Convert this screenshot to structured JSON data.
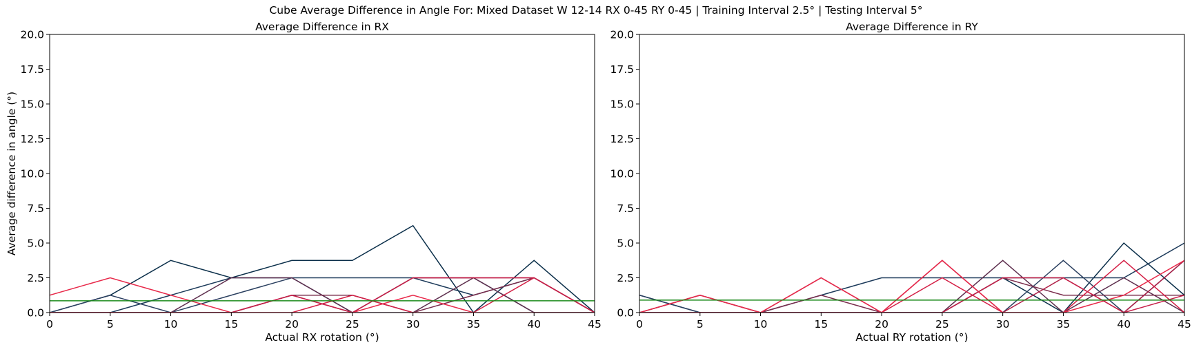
{
  "suptitle": "Cube Average Difference in Angle For: Mixed Dataset W 12-14 RX 0-45 RY 0-45 | Training Interval 2.5° | Testing Interval 5°",
  "chart_data": [
    {
      "type": "line",
      "title": "Average Difference in RX",
      "xlabel": "Actual RX rotation (°)",
      "ylabel": "Average difference in angle (°)",
      "xlim": [
        0,
        45
      ],
      "ylim": [
        0,
        20
      ],
      "xticks": [
        "0",
        "5",
        "10",
        "15",
        "20",
        "25",
        "30",
        "35",
        "40",
        "45"
      ],
      "yticks": [
        "0.0",
        "2.5",
        "5.0",
        "7.5",
        "10.0",
        "12.5",
        "15.0",
        "17.5",
        "20.0"
      ],
      "x": [
        0,
        5,
        10,
        15,
        20,
        25,
        30,
        35,
        40,
        45
      ],
      "grid": false,
      "series": [
        {
          "color": "#0b2f4a",
          "values": [
            0,
            1.25,
            3.75,
            2.5,
            3.75,
            3.75,
            6.25,
            0,
            3.75,
            0
          ]
        },
        {
          "color": "#1c3a5a",
          "values": [
            0,
            0,
            1.25,
            2.5,
            2.5,
            2.5,
            2.5,
            1.25,
            2.5,
            0
          ]
        },
        {
          "color": "#2b4060",
          "values": [
            0,
            1.25,
            0,
            1.25,
            2.5,
            0,
            2.5,
            2.5,
            0,
            0
          ]
        },
        {
          "color": "#5e2f4e",
          "values": [
            0,
            0,
            0,
            2.5,
            2.5,
            0,
            0,
            2.5,
            0,
            0
          ]
        },
        {
          "color": "#7a2c4c",
          "values": [
            0,
            0,
            0,
            0,
            1.25,
            1.25,
            0,
            1.25,
            2.5,
            0
          ]
        },
        {
          "color": "#b02048",
          "values": [
            0,
            0,
            0,
            0,
            1.25,
            0,
            2.5,
            2.5,
            2.5,
            0
          ]
        },
        {
          "color": "#d42046",
          "values": [
            0,
            0,
            0,
            0,
            0,
            1.25,
            0,
            0,
            2.5,
            0
          ]
        },
        {
          "color": "#e8294a",
          "values": [
            1.25,
            2.5,
            1.25,
            0,
            0,
            0,
            1.25,
            0,
            0,
            0
          ]
        },
        {
          "color": "#c61f48",
          "values": [
            0,
            0,
            0,
            0,
            1.25,
            0,
            2.5,
            2.5,
            2.5,
            0
          ]
        },
        {
          "color": "#1a8a1a",
          "values": [
            0.85,
            0.85,
            0.85,
            0.85,
            0.85,
            0.85,
            0.85,
            0.85,
            0.85,
            0.85
          ]
        }
      ]
    },
    {
      "type": "line",
      "title": "Average Difference in RY",
      "xlabel": "Actual RY rotation (°)",
      "ylabel": "",
      "xlim": [
        0,
        45
      ],
      "ylim": [
        0,
        20
      ],
      "xticks": [
        "0",
        "5",
        "10",
        "15",
        "20",
        "25",
        "30",
        "35",
        "40",
        "45"
      ],
      "yticks": [
        "0.0",
        "2.5",
        "5.0",
        "7.5",
        "10.0",
        "12.5",
        "15.0",
        "17.5",
        "20.0"
      ],
      "x": [
        0,
        5,
        10,
        15,
        20,
        25,
        30,
        35,
        40,
        45
      ],
      "grid": false,
      "series": [
        {
          "color": "#0b2f4a",
          "values": [
            1.25,
            0,
            0,
            0,
            0,
            0,
            2.5,
            0,
            5.0,
            1.25
          ]
        },
        {
          "color": "#1c3a5a",
          "values": [
            0,
            0,
            0,
            1.25,
            2.5,
            2.5,
            2.5,
            2.5,
            2.5,
            5.0
          ]
        },
        {
          "color": "#2b4060",
          "values": [
            1.25,
            0,
            0,
            0,
            0,
            0,
            0,
            3.75,
            0,
            3.75
          ]
        },
        {
          "color": "#5e2f4e",
          "values": [
            0,
            0,
            0,
            0,
            0,
            0,
            3.75,
            0,
            2.5,
            0
          ]
        },
        {
          "color": "#7a2c4c",
          "values": [
            0,
            1.25,
            0,
            1.25,
            0,
            0,
            2.5,
            1.25,
            1.25,
            1.25
          ]
        },
        {
          "color": "#b02048",
          "values": [
            0,
            1.25,
            0,
            2.5,
            0,
            3.75,
            0,
            2.5,
            0,
            3.75
          ]
        },
        {
          "color": "#d42046",
          "values": [
            0,
            0,
            0,
            0,
            0,
            2.5,
            0,
            0,
            3.75,
            0
          ]
        },
        {
          "color": "#e8294a",
          "values": [
            0,
            1.25,
            0,
            2.5,
            0,
            3.75,
            0,
            0,
            1.25,
            3.75
          ]
        },
        {
          "color": "#c61f48",
          "values": [
            0,
            0,
            0,
            0,
            0,
            0,
            2.5,
            2.5,
            0,
            1.25
          ]
        },
        {
          "color": "#1a8a1a",
          "values": [
            0.9,
            0.9,
            0.9,
            0.9,
            0.9,
            0.9,
            0.9,
            0.9,
            0.9,
            0.9
          ]
        }
      ]
    }
  ]
}
